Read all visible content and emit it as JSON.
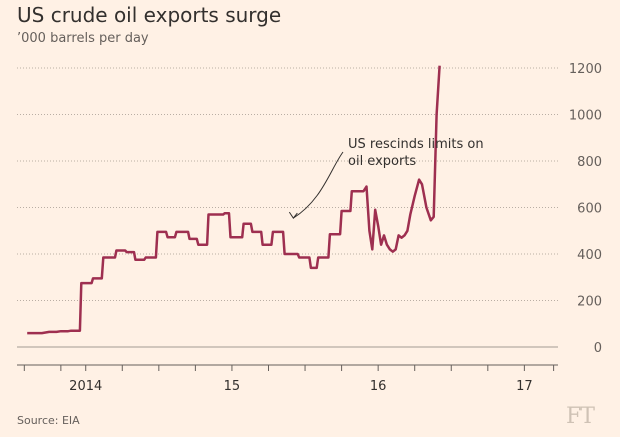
{
  "header": {
    "title": "US crude oil exports surge",
    "subtitle": "’000 barrels per day"
  },
  "footer": {
    "source": "Source: EIA",
    "logo_text": "FT"
  },
  "chart_data": {
    "type": "line",
    "title": "US crude oil exports surge",
    "subtitle": "’000 barrels per day",
    "xlabel": "",
    "ylabel": "",
    "x_range": [
      2013.53,
      2017.23
    ],
    "ylim": [
      0,
      1250
    ],
    "y_ticks": [
      0,
      200,
      400,
      600,
      800,
      1000,
      1200
    ],
    "x_tick_positions": [
      2013.58,
      2013.83,
      2014.0,
      2014.25,
      2014.5,
      2014.75,
      2015.0,
      2015.25,
      2015.5,
      2015.75,
      2016.0,
      2016.25,
      2016.5,
      2016.75,
      2017.0,
      2017.2
    ],
    "x_tick_labels": [
      {
        "x": 2014.0,
        "label": "2014"
      },
      {
        "x": 2015.0,
        "label": "15"
      },
      {
        "x": 2016.0,
        "label": "16"
      },
      {
        "x": 2017.0,
        "label": "17"
      }
    ],
    "grid": "horizontal-dotted",
    "line_color": "#9e2f50",
    "series": [
      {
        "name": "",
        "points": [
          [
            2013.6,
            60
          ],
          [
            2013.7,
            60
          ],
          [
            2013.75,
            65
          ],
          [
            2013.8,
            65
          ],
          [
            2013.83,
            68
          ],
          [
            2013.88,
            68
          ],
          [
            2013.9,
            70
          ],
          [
            2013.96,
            70
          ],
          [
            2013.97,
            275
          ],
          [
            2014.04,
            275
          ],
          [
            2014.05,
            295
          ],
          [
            2014.11,
            295
          ],
          [
            2014.12,
            385
          ],
          [
            2014.2,
            385
          ],
          [
            2014.21,
            415
          ],
          [
            2014.27,
            415
          ],
          [
            2014.28,
            408
          ],
          [
            2014.33,
            408
          ],
          [
            2014.34,
            375
          ],
          [
            2014.4,
            375
          ],
          [
            2014.41,
            385
          ],
          [
            2014.48,
            385
          ],
          [
            2014.49,
            495
          ],
          [
            2014.55,
            495
          ],
          [
            2014.56,
            472
          ],
          [
            2014.61,
            472
          ],
          [
            2014.62,
            495
          ],
          [
            2014.7,
            495
          ],
          [
            2014.71,
            465
          ],
          [
            2014.76,
            465
          ],
          [
            2014.77,
            440
          ],
          [
            2014.83,
            440
          ],
          [
            2014.84,
            570
          ],
          [
            2014.94,
            570
          ],
          [
            2014.95,
            575
          ],
          [
            2014.98,
            575
          ],
          [
            2014.99,
            472
          ],
          [
            2015.07,
            472
          ],
          [
            2015.08,
            530
          ],
          [
            2015.13,
            530
          ],
          [
            2015.14,
            495
          ],
          [
            2015.2,
            495
          ],
          [
            2015.21,
            440
          ],
          [
            2015.27,
            440
          ],
          [
            2015.28,
            495
          ],
          [
            2015.35,
            495
          ],
          [
            2015.36,
            400
          ],
          [
            2015.45,
            400
          ],
          [
            2015.46,
            385
          ],
          [
            2015.53,
            385
          ],
          [
            2015.54,
            340
          ],
          [
            2015.58,
            340
          ],
          [
            2015.59,
            385
          ],
          [
            2015.66,
            385
          ],
          [
            2015.67,
            485
          ],
          [
            2015.74,
            485
          ],
          [
            2015.75,
            585
          ],
          [
            2015.81,
            585
          ],
          [
            2015.82,
            670
          ],
          [
            2015.9,
            670
          ],
          [
            2015.92,
            690
          ],
          [
            2015.94,
            500
          ],
          [
            2015.96,
            420
          ],
          [
            2015.98,
            590
          ],
          [
            2016.0,
            520
          ],
          [
            2016.02,
            440
          ],
          [
            2016.04,
            480
          ],
          [
            2016.06,
            440
          ],
          [
            2016.08,
            420
          ],
          [
            2016.1,
            410
          ],
          [
            2016.12,
            420
          ],
          [
            2016.14,
            480
          ],
          [
            2016.16,
            470
          ],
          [
            2016.18,
            480
          ],
          [
            2016.2,
            500
          ],
          [
            2016.22,
            570
          ],
          [
            2016.25,
            650
          ],
          [
            2016.28,
            720
          ],
          [
            2016.3,
            700
          ],
          [
            2016.33,
            600
          ],
          [
            2016.36,
            545
          ],
          [
            2016.38,
            560
          ],
          [
            2016.4,
            1000
          ],
          [
            2016.42,
            1210
          ]
        ]
      }
    ],
    "annotation": {
      "text_lines": [
        "US rescinds limits on",
        "oil exports"
      ],
      "target_x": 2015.42,
      "target_y": 520
    }
  }
}
